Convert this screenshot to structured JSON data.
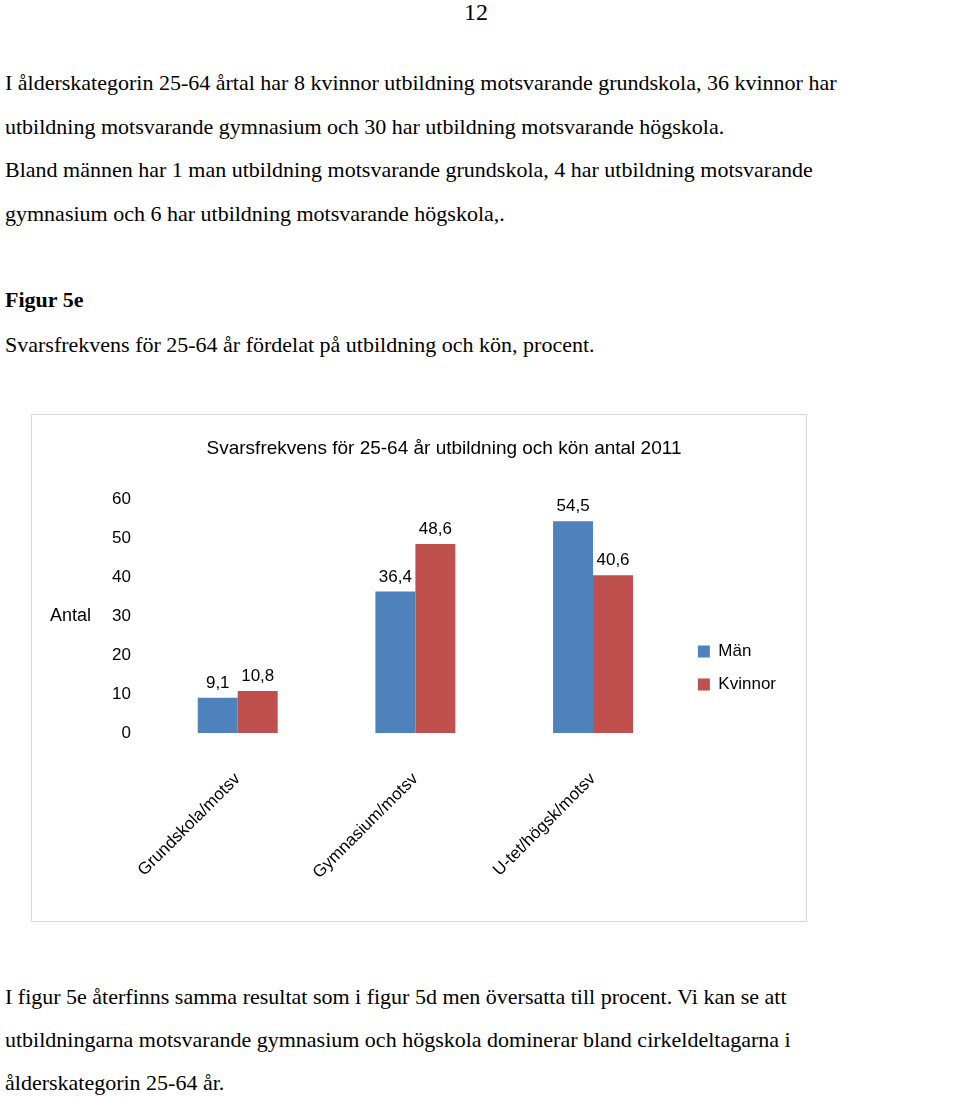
{
  "page_number": "12",
  "paragraph_1": [
    "I ålderskategorin 25-64 årtal har 8 kvinnor utbildning motsvarande grundskola, 36 kvinnor har",
    "utbildning motsvarande gymnasium och 30 har utbildning motsvarande högskola.",
    "Bland männen har 1 man utbildning motsvarande grundskola, 4 har utbildning motsvarande",
    "gymnasium och 6 har utbildning motsvarande högskola,."
  ],
  "figure": {
    "label": "Figur 5e",
    "caption": "Svarsfrekvens för 25-64 år fördelat på utbildning och kön, procent."
  },
  "chart_data": {
    "type": "bar",
    "title": "Svarsfrekvens för 25-64 år utbildning och kön antal 2011",
    "y_label": "Antal",
    "categories": [
      "Grundskola/motsv",
      "Gymnasium/motsv",
      "U-tet/högsk/motsv"
    ],
    "series": [
      {
        "name": "Män",
        "color": "#4f81bd",
        "values": [
          9.1,
          36.4,
          54.5
        ],
        "value_labels": [
          "9,1",
          "36,4",
          "54,5"
        ]
      },
      {
        "name": "Kvinnor",
        "color": "#c0504d",
        "values": [
          10.8,
          48.6,
          40.6
        ],
        "value_labels": [
          "10,8",
          "48,6",
          "40,6"
        ]
      }
    ],
    "ylim": [
      0,
      60
    ],
    "yticks": [
      0,
      10,
      20,
      30,
      40,
      50,
      60
    ],
    "grid": false,
    "legend": "right",
    "data_labels": true
  },
  "paragraph_2": [
    "I figur 5e återfinns samma resultat som i figur 5d men översatta till procent. Vi kan se att",
    "utbildningarna motsvarande gymnasium och högskola dominerar bland cirkeldeltagarna i",
    "ålderskategorin 25-64 år."
  ]
}
